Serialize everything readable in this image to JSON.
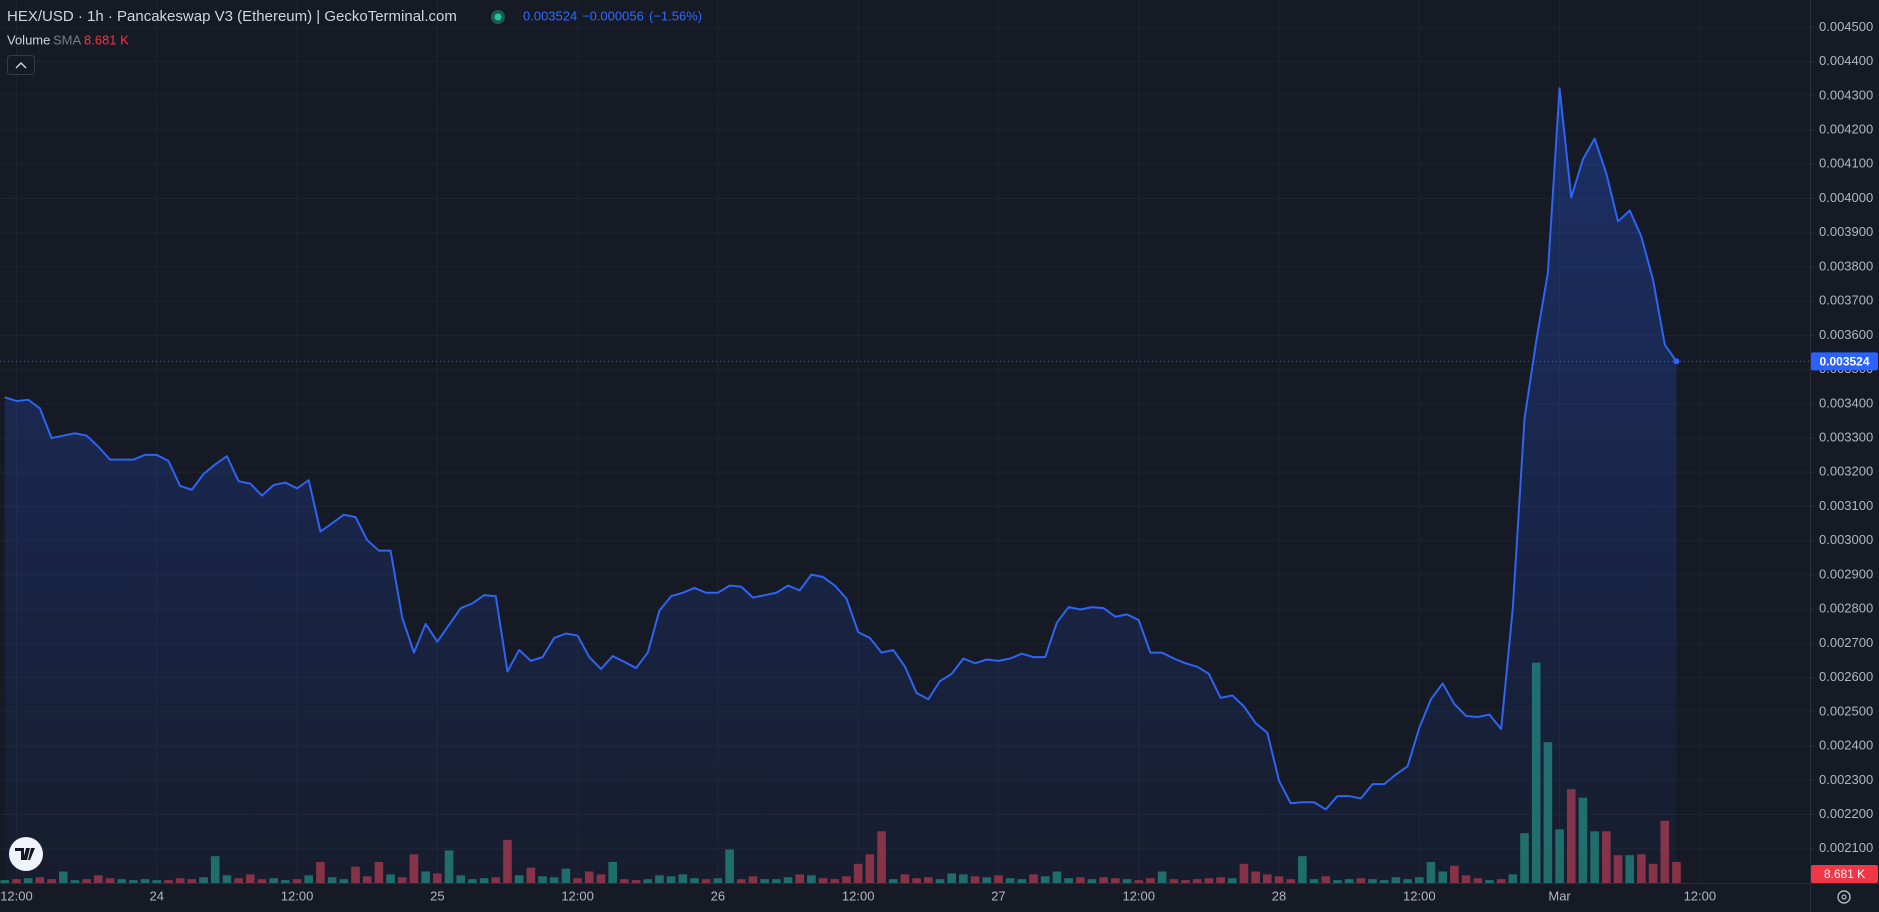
{
  "chart_data": {
    "type": "area",
    "title": "HEX/USD · 1h · Pancakeswap V3 (Ethereum) | GeckoTerminal.com",
    "change": "−0.000056",
    "change_percent": "(−1.56%)",
    "color": "#2f63f2",
    "grid": true,
    "categories": [
      null,
      "12:00",
      null,
      null,
      null,
      null,
      null,
      null,
      null,
      null,
      null,
      null,
      null,
      "24",
      null,
      null,
      null,
      null,
      null,
      null,
      null,
      null,
      null,
      null,
      null,
      "12:00",
      null,
      null,
      null,
      null,
      null,
      null,
      null,
      null,
      null,
      null,
      null,
      "25",
      null,
      null,
      null,
      null,
      null,
      null,
      null,
      null,
      null,
      null,
      null,
      "12:00",
      null,
      null,
      null,
      null,
      null,
      null,
      null,
      null,
      null,
      null,
      null,
      "26",
      null,
      null,
      null,
      null,
      null,
      null,
      null,
      null,
      null,
      null,
      null,
      "12:00",
      null,
      null,
      null,
      null,
      null,
      null,
      null,
      null,
      null,
      null,
      null,
      "27",
      null,
      null,
      null,
      null,
      null,
      null,
      null,
      null,
      null,
      null,
      null,
      "12:00",
      null,
      null,
      null,
      null,
      null,
      null,
      null,
      null,
      null,
      null,
      null,
      "28",
      null,
      null,
      null,
      null,
      null,
      null,
      null,
      null,
      null,
      null,
      null,
      "12:00",
      null,
      null,
      null,
      null,
      null,
      null,
      null,
      null,
      null,
      null,
      null,
      "Mar",
      null,
      null,
      null,
      null,
      null,
      null,
      null,
      null,
      null,
      null,
      null,
      "12:00"
    ],
    "values": [
      0.003419,
      0.003408,
      0.003412,
      0.003387,
      0.0033,
      0.003307,
      0.003314,
      0.003307,
      0.003275,
      0.003237,
      0.003237,
      0.003237,
      0.003251,
      0.003251,
      0.003233,
      0.00316,
      0.003149,
      0.003195,
      0.003223,
      0.003247,
      0.003174,
      0.003167,
      0.003132,
      0.003163,
      0.00317,
      0.003153,
      0.003177,
      0.003027,
      0.003051,
      0.003076,
      0.003069,
      0.003002,
      0.002971,
      0.002971,
      0.002775,
      0.002673,
      0.002757,
      0.002705,
      0.002754,
      0.002803,
      0.002817,
      0.002841,
      0.002838,
      0.002618,
      0.002681,
      0.002649,
      0.00266,
      0.002716,
      0.002729,
      0.002723,
      0.00266,
      0.002625,
      0.002663,
      0.002646,
      0.002628,
      0.002673,
      0.002796,
      0.002838,
      0.002848,
      0.002862,
      0.002848,
      0.002848,
      0.002869,
      0.002866,
      0.002834,
      0.002841,
      0.002848,
      0.002869,
      0.002855,
      0.002901,
      0.002894,
      0.002869,
      0.002831,
      0.002733,
      0.002716,
      0.002673,
      0.002681,
      0.002632,
      0.002555,
      0.002537,
      0.00259,
      0.002611,
      0.002656,
      0.002642,
      0.002653,
      0.002649,
      0.002656,
      0.00267,
      0.00266,
      0.00266,
      0.002761,
      0.002806,
      0.002799,
      0.002806,
      0.002803,
      0.002778,
      0.002785,
      0.002768,
      0.002673,
      0.002673,
      0.002656,
      0.002642,
      0.002632,
      0.002611,
      0.002541,
      0.002548,
      0.002516,
      0.002467,
      0.002439,
      0.002299,
      0.002233,
      0.002236,
      0.002236,
      0.002215,
      0.002254,
      0.002254,
      0.002247,
      0.002289,
      0.002289,
      0.002317,
      0.002341,
      0.002453,
      0.002537,
      0.002583,
      0.002523,
      0.002488,
      0.002485,
      0.002492,
      0.00245,
      0.002803,
      0.003356,
      0.003583,
      0.003783,
      0.004322,
      0.004003,
      0.004115,
      0.004175,
      0.004073,
      0.003933,
      0.003965,
      0.003888,
      0.003762,
      0.003573,
      0.003524,
      null,
      null
    ],
    "ylim": [
      0.002,
      0.00458
    ],
    "yticks": [
      {
        "value": 0.0021,
        "label": "0.002100"
      },
      {
        "value": 0.0022,
        "label": "0.002200"
      },
      {
        "value": 0.0023,
        "label": "0.002300"
      },
      {
        "value": 0.0024,
        "label": "0.002400"
      },
      {
        "value": 0.0025,
        "label": "0.002500"
      },
      {
        "value": 0.0026,
        "label": "0.002600"
      },
      {
        "value": 0.0027,
        "label": "0.002700"
      },
      {
        "value": 0.0028,
        "label": "0.002800"
      },
      {
        "value": 0.0029,
        "label": "0.002900"
      },
      {
        "value": 0.003,
        "label": "0.003000"
      },
      {
        "value": 0.0031,
        "label": "0.003100"
      },
      {
        "value": 0.0032,
        "label": "0.003200"
      },
      {
        "value": 0.0033,
        "label": "0.003300"
      },
      {
        "value": 0.0034,
        "label": "0.003400"
      },
      {
        "value": 0.0035,
        "label": "0.003500"
      },
      {
        "value": 0.0036,
        "label": "0.003600"
      },
      {
        "value": 0.0037,
        "label": "0.003700"
      },
      {
        "value": 0.0038,
        "label": "0.003800"
      },
      {
        "value": 0.0039,
        "label": "0.003900"
      },
      {
        "value": 0.004,
        "label": "0.004000"
      },
      {
        "value": 0.0041,
        "label": "0.004100"
      },
      {
        "value": 0.0042,
        "label": "0.004200"
      },
      {
        "value": 0.0043,
        "label": "0.004300"
      },
      {
        "value": 0.0044,
        "label": "0.004400"
      },
      {
        "value": 0.0045,
        "label": "0.004500"
      }
    ],
    "volume": {
      "title": "Volume",
      "indicator": "SMA",
      "sma": 8.681,
      "sma_label": "8.681 K",
      "sma_color": "#f23645",
      "up_color": "#1f6f65",
      "down_color": "#8a3140",
      "values": [
        3,
        4,
        5,
        6,
        4,
        12,
        3,
        4,
        8,
        5,
        4,
        3,
        4,
        3,
        3,
        5,
        4,
        6,
        28,
        8,
        5,
        9,
        4,
        5,
        3,
        4,
        8,
        22,
        6,
        4,
        17,
        7,
        22,
        9,
        6,
        30,
        12,
        10,
        34,
        8,
        4,
        5,
        6,
        45,
        8,
        16,
        7,
        6,
        15,
        5,
        12,
        9,
        22,
        4,
        3,
        4,
        8,
        7,
        9,
        5,
        4,
        5,
        35,
        4,
        7,
        4,
        4,
        6,
        9,
        8,
        5,
        4,
        7,
        20,
        30,
        54,
        4,
        9,
        5,
        6,
        4,
        10,
        9,
        7,
        6,
        8,
        5,
        4,
        9,
        7,
        12,
        5,
        6,
        4,
        6,
        5,
        4,
        3,
        5,
        12,
        4,
        3,
        4,
        5,
        6,
        5,
        20,
        12,
        9,
        7,
        4,
        28,
        4,
        7,
        3,
        4,
        5,
        4,
        3,
        6,
        4,
        6,
        22,
        12,
        18,
        8,
        5,
        3,
        4,
        9,
        52,
        230,
        147,
        56,
        98,
        89,
        54,
        54,
        29,
        29,
        30,
        20,
        65,
        22,
        null,
        null
      ]
    }
  }
}
